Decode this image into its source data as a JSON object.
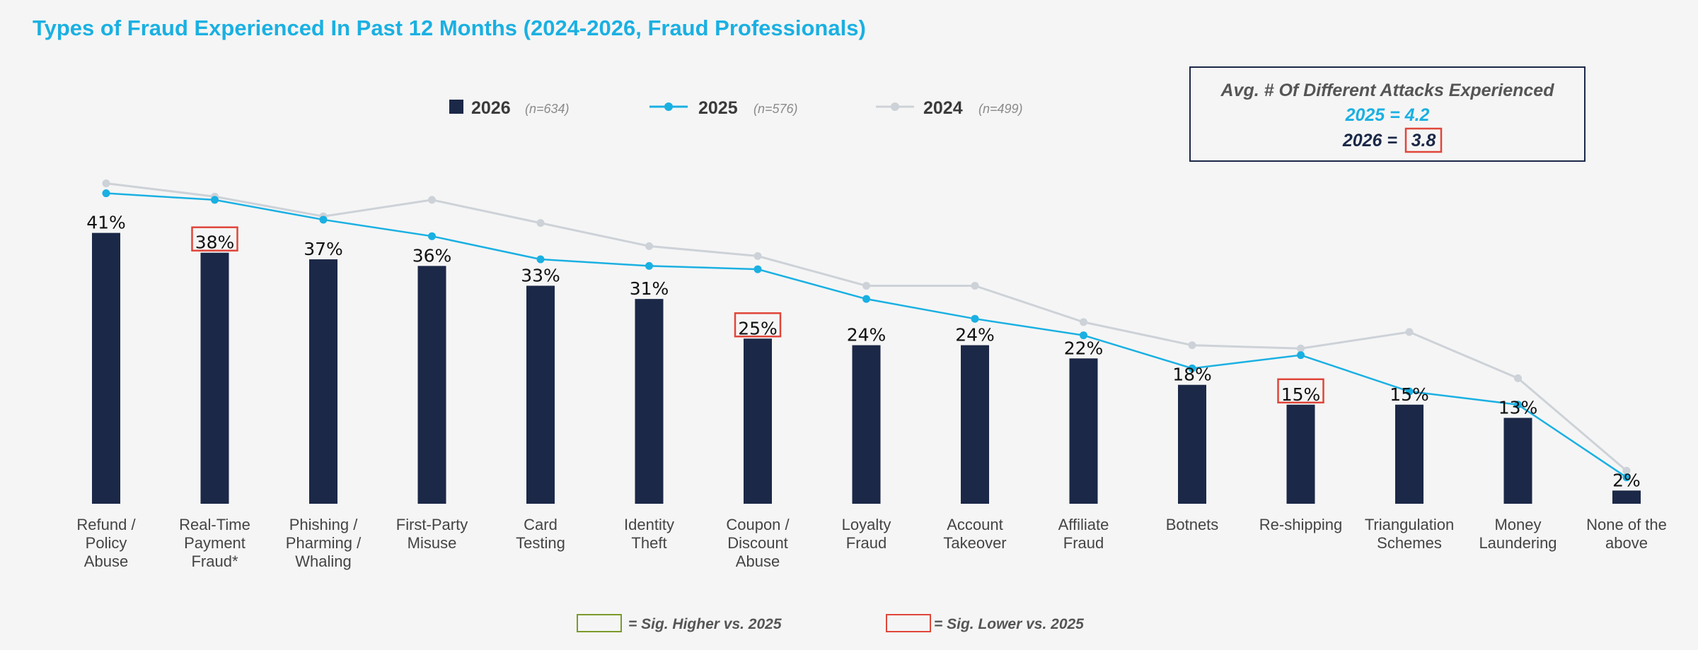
{
  "chart_data": {
    "type": "bar",
    "title": "Types of Fraud Experienced In Past 12 Months (2024-2026, Fraud Professionals)",
    "categories": [
      "Refund / Policy Abuse",
      "Real-Time Payment Fraud*",
      "Phishing / Pharming / Whaling",
      "First-Party Misuse",
      "Card Testing",
      "Identity Theft",
      "Coupon / Discount Abuse",
      "Loyalty Fraud",
      "Account Takeover",
      "Affiliate Fraud",
      "Botnets",
      "Re-shipping",
      "Triangulation Schemes",
      "Money Laundering",
      "None of the above"
    ],
    "category_lines": [
      [
        "Refund /",
        "Policy",
        "Abuse"
      ],
      [
        "Real-Time",
        "Payment",
        "Fraud*"
      ],
      [
        "Phishing /",
        "Pharming /",
        "Whaling"
      ],
      [
        "First-Party",
        "Misuse"
      ],
      [
        "Card",
        "Testing"
      ],
      [
        "Identity",
        "Theft"
      ],
      [
        "Coupon /",
        "Discount",
        "Abuse"
      ],
      [
        "Loyalty",
        "Fraud"
      ],
      [
        "Account",
        "Takeover"
      ],
      [
        "Affiliate",
        "Fraud"
      ],
      [
        "Botnets"
      ],
      [
        "Re-shipping"
      ],
      [
        "Triangulation",
        "Schemes"
      ],
      [
        "Money",
        "Laundering"
      ],
      [
        "None of the",
        "above"
      ]
    ],
    "series": [
      {
        "name": "2026",
        "n_label": "(n=634)",
        "type": "bar",
        "color": "#1b2847",
        "values": [
          41,
          38,
          37,
          36,
          33,
          31,
          25,
          24,
          24,
          22,
          18,
          15,
          15,
          13,
          2
        ],
        "value_labels": [
          "41%",
          "38%",
          "37%",
          "36%",
          "33%",
          "31%",
          "25%",
          "24%",
          "24%",
          "22%",
          "18%",
          "15%",
          "15%",
          "13%",
          "2%"
        ],
        "sig_lower_flags": [
          false,
          true,
          false,
          false,
          false,
          false,
          true,
          false,
          false,
          false,
          false,
          true,
          false,
          false,
          false
        ]
      },
      {
        "name": "2025",
        "n_label": "(n=576)",
        "type": "line",
        "color": "#1ab0e2",
        "values": [
          47,
          46,
          43,
          40.5,
          37,
          36,
          35.5,
          31,
          28,
          25.5,
          20.5,
          22.5,
          17,
          15,
          4
        ]
      },
      {
        "name": "2024",
        "n_label": "(n=499)",
        "type": "line",
        "color": "#cdd2d8",
        "values": [
          48.5,
          46.5,
          43.5,
          46,
          42.5,
          39,
          37.5,
          33,
          33,
          27.5,
          24,
          23.5,
          26,
          19,
          5
        ]
      }
    ],
    "ylim": [
      0,
      50
    ],
    "grid": false,
    "legend_position": "top-center"
  },
  "attacks_box": {
    "heading": "Avg. # Of Different Attacks Experienced",
    "line_2025": "2025 = 4.2",
    "line_2026_prefix": "2026 =",
    "line_2026_value": "3.8"
  },
  "sig_key": {
    "higher_label": "= Sig. Higher vs. 2025",
    "higher_color": "#7a9a2a",
    "lower_label": "= Sig. Lower vs. 2025",
    "lower_color": "#e0463a"
  }
}
